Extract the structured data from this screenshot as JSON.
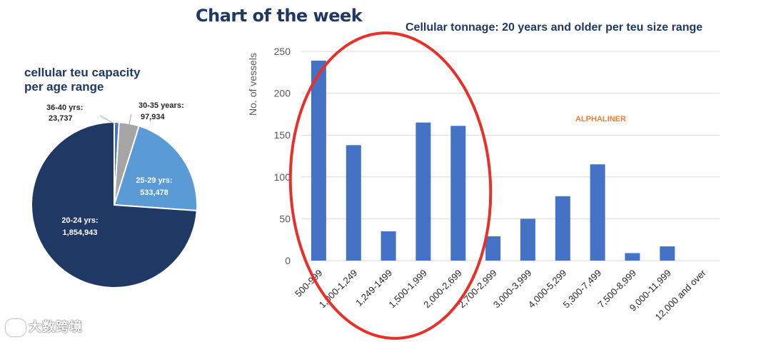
{
  "headline": "Chart of the week",
  "pie": {
    "title_line1": "cellular teu capacity",
    "title_line2": "per age range"
  },
  "bar": {
    "title": "Cellular tonnage: 20 years and older per teu size range",
    "brand": "ALPHALINER"
  },
  "watermark": "大数跨境",
  "colors": {
    "bar": "#4472c4",
    "pie_20_24": "#203864",
    "pie_25_29": "#5b9bd5",
    "pie_30_35": "#a5a5a5",
    "pie_36_40": "#4472c4",
    "circle": "#e8302b",
    "brand": "#ed7d31"
  },
  "chart_data": [
    {
      "type": "pie",
      "title": "cellular teu capacity per age range",
      "slices": [
        {
          "label": "36-40 yrs:",
          "value": 23737,
          "value_label": "23,737"
        },
        {
          "label": "30-35 years:",
          "value": 97934,
          "value_label": "97,934"
        },
        {
          "label": "25-29 yrs:",
          "value": 533478,
          "value_label": "533,478"
        },
        {
          "label": "20-24 yrs:",
          "value": 1854943,
          "value_label": "1,854,943"
        }
      ]
    },
    {
      "type": "bar",
      "title": "Cellular tonnage: 20 years and older per teu size range",
      "ylabel": "No. of vessels",
      "ylim": [
        0,
        250
      ],
      "yticks": [
        0,
        50,
        100,
        150,
        200,
        250
      ],
      "categories": [
        "500-999",
        "1,000-1,249",
        "1,249-1499",
        "1,500-1,999",
        "2,000-2,699",
        "2,700-2,999",
        "3,000-3,999",
        "4,000-5,299",
        "5,300-7,499",
        "7,500-8,999",
        "9,000-11,999",
        "12,000 and over"
      ],
      "values": [
        239,
        138,
        35,
        165,
        161,
        29,
        50,
        77,
        115,
        9,
        17,
        0
      ],
      "grid": true
    }
  ]
}
